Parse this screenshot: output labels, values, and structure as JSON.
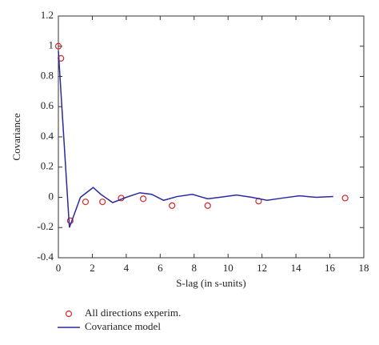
{
  "chart_data": {
    "type": "line",
    "x_label": "S-lag (in s-units)",
    "y_label": "Covariance",
    "xlim": [
      0,
      18
    ],
    "xticks": [
      0,
      2,
      4,
      6,
      8,
      10,
      12,
      14,
      16,
      18
    ],
    "ylim": [
      -0.4,
      1.2
    ],
    "yticks": [
      -0.4,
      -0.2,
      0,
      0.2,
      0.4,
      0.6,
      0.8,
      1,
      1.2
    ],
    "legend": "bottom",
    "series": [
      {
        "name": "All directions experim.",
        "color": "#d62728",
        "mode": "markers",
        "x": [
          0,
          0.15,
          0.7,
          1.6,
          2.6,
          3.7,
          5.0,
          6.7,
          8.8,
          11.8,
          16.9
        ],
        "values": [
          1.0,
          0.92,
          -0.155,
          -0.03,
          -0.03,
          -0.005,
          -0.01,
          -0.055,
          -0.055,
          -0.025,
          -0.005
        ]
      },
      {
        "name": "Covariance model",
        "color": "#2a2aa0",
        "mode": "line",
        "x": [
          0,
          0.65,
          1.3,
          2.05,
          2.5,
          3.2,
          4,
          4.8,
          5.5,
          6.2,
          7,
          7.9,
          8.8,
          9.5,
          10.5,
          11.4,
          12.3,
          13.2,
          14.2,
          15.2,
          16.2
        ],
        "values": [
          0.97,
          -0.2,
          0.0,
          0.065,
          0.02,
          -0.035,
          0.0,
          0.03,
          0.02,
          -0.02,
          0.005,
          0.02,
          -0.01,
          0.0,
          0.015,
          0.0,
          -0.02,
          -0.005,
          0.01,
          0.0,
          0.005
        ]
      }
    ]
  }
}
